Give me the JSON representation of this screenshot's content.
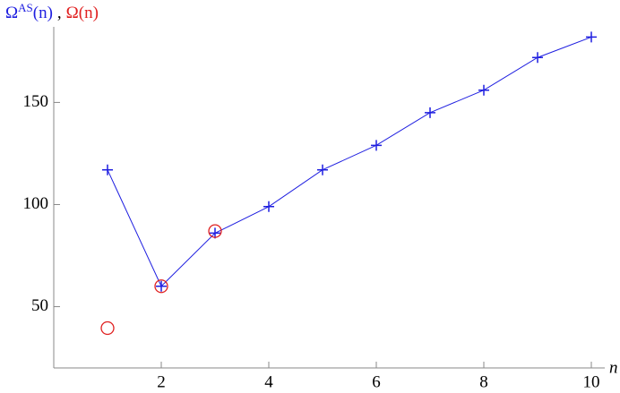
{
  "chart_data": {
    "type": "line",
    "y_label_parts": [
      "Ω",
      "AS",
      "(n)",
      ",",
      "Ω(n)"
    ],
    "x_label": "n",
    "series": [
      {
        "name": "ΩAS(n)",
        "color": "#1f1fe0",
        "marker": "plus",
        "line": true,
        "x": [
          1,
          2,
          3,
          4,
          5,
          6,
          7,
          8,
          9,
          10
        ],
        "values": [
          117,
          60,
          86,
          99,
          117,
          129,
          145,
          156,
          172,
          182
        ]
      },
      {
        "name": "Ω(n)",
        "color": "#e02020",
        "marker": "circle",
        "line": false,
        "x": [
          1,
          2,
          3
        ],
        "values": [
          39.5,
          60,
          87
        ]
      }
    ],
    "xlim": [
      0,
      10.25
    ],
    "xticks": [
      2,
      4,
      6,
      8,
      10
    ],
    "ylim": [
      20,
      187
    ],
    "yticks": [
      50,
      100,
      150
    ]
  }
}
